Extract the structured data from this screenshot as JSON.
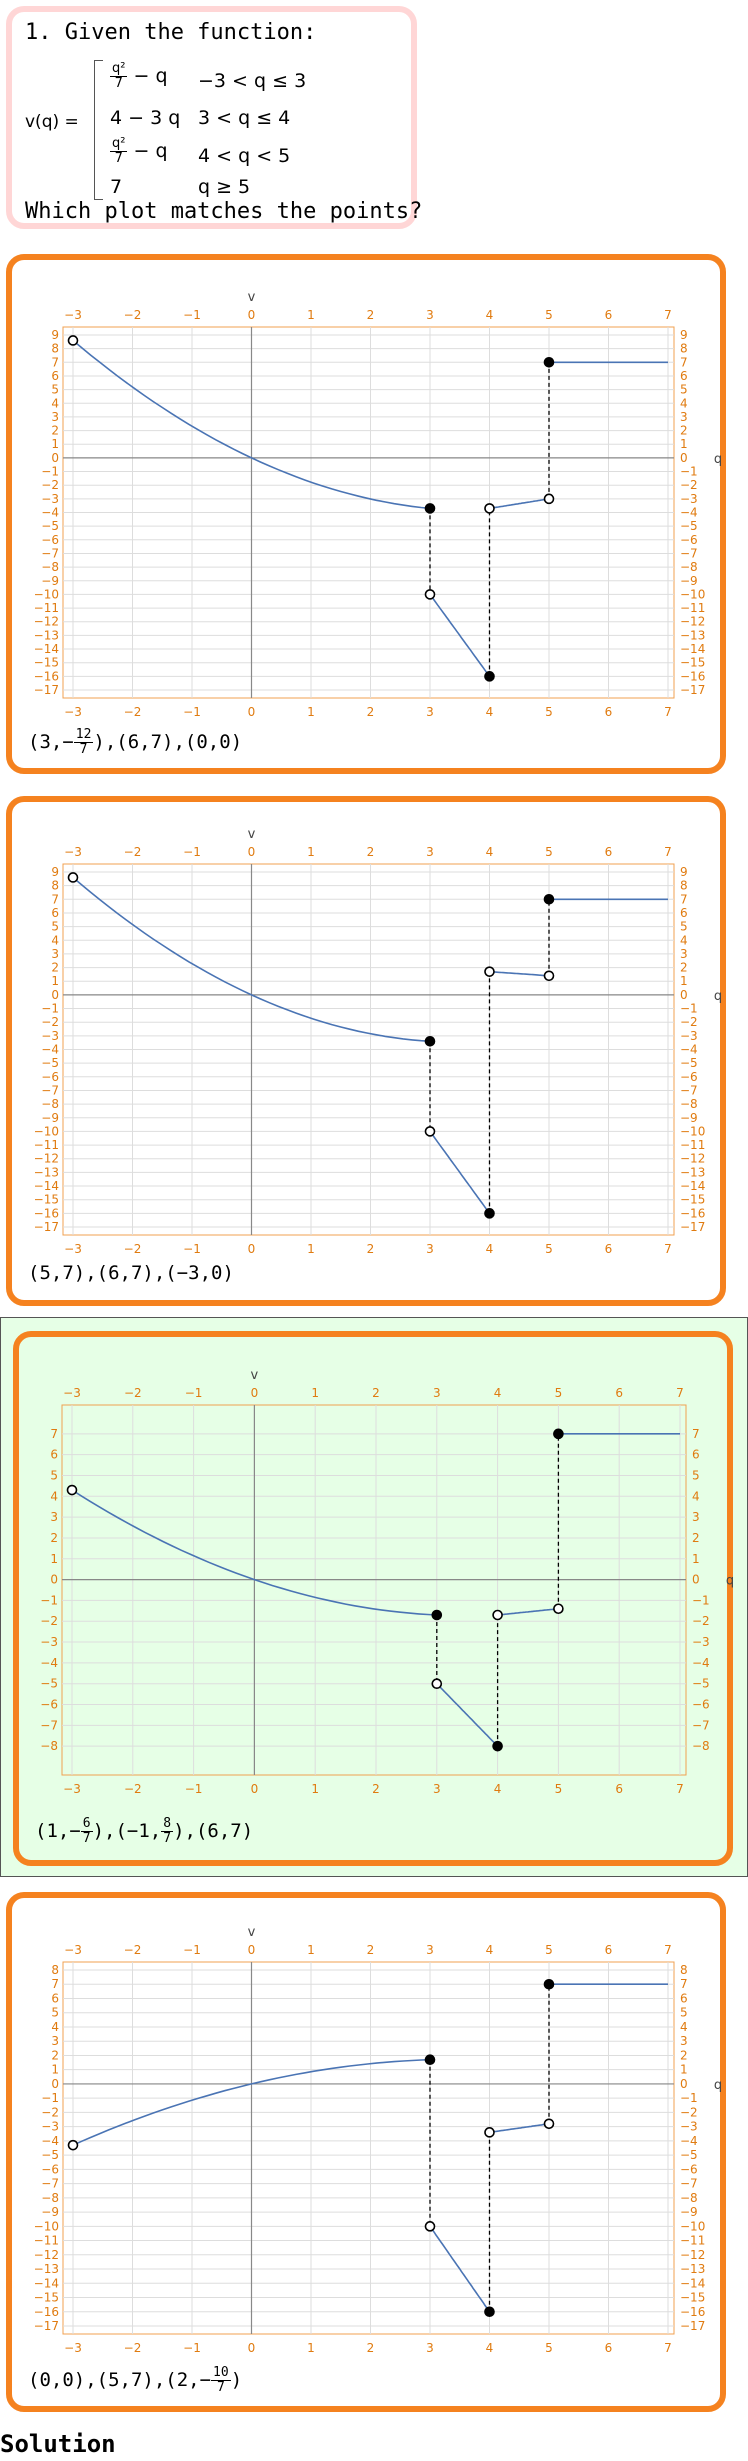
{
  "question": {
    "title": "1. Given the function:",
    "function_name": "v(q) =",
    "cases": [
      {
        "expr_frac_num": "q²",
        "expr_frac_den": "7",
        "expr_rest": " − q",
        "condition": "−3 < q ≤ 3"
      },
      {
        "expr_plain": "4 − 3 q",
        "condition": "3 < q ≤ 4"
      },
      {
        "expr_frac_num": "q²",
        "expr_frac_den": "7",
        "expr_rest": " − q",
        "condition": "4 < q < 5"
      },
      {
        "expr_plain": "7",
        "condition": "q ≥ 5"
      }
    ],
    "prompt": "Which plot matches the points?"
  },
  "colors": {
    "question_border": "#ffd6d6",
    "option_border": "#f5821f",
    "selected_bg": "#e6ffe6",
    "curve": "#4a74b4",
    "tick": "#e07b10"
  },
  "options": [
    {
      "points_label": [
        {
          "t": "(3,−"
        },
        {
          "num": "12",
          "den": "7"
        },
        {
          "t": "),(6,7),(0,0)"
        }
      ],
      "chart_data": {
        "type": "line",
        "xlabel": "q",
        "ylabel": "v",
        "xlim": [
          -3,
          7
        ],
        "ylim": [
          -17,
          9
        ],
        "xticks": [
          -3,
          -2,
          -1,
          0,
          1,
          2,
          3,
          4,
          5,
          6,
          7
        ],
        "yticks": [
          9,
          8,
          7,
          6,
          5,
          4,
          3,
          2,
          1,
          0,
          -1,
          -2,
          -3,
          -4,
          -5,
          -6,
          -7,
          -8,
          -9,
          -10,
          -11,
          -12,
          -13,
          -14,
          -15,
          -16,
          -17
        ],
        "segments": [
          {
            "fn": "q^2/7-q",
            "from": -3,
            "to": 3
          },
          {
            "fn": "4-3q",
            "from": 3,
            "to": 4
          },
          {
            "fn": "q^2/7-q",
            "from": 4,
            "to": 5
          },
          {
            "fn": "7",
            "from": 5,
            "to": 7
          }
        ],
        "dashes": [
          [
            3,
            -3.7,
            3,
            -10
          ],
          [
            4,
            -16,
            4,
            -3.7
          ],
          [
            5,
            -3,
            5,
            7
          ]
        ],
        "points": [
          {
            "x": -3,
            "y": 8.6,
            "filled": false
          },
          {
            "x": 3,
            "y": -3.7,
            "filled": true
          },
          {
            "x": 3,
            "y": -10,
            "filled": false
          },
          {
            "x": 4,
            "y": -16,
            "filled": true
          },
          {
            "x": 4,
            "y": -3.7,
            "filled": false
          },
          {
            "x": 5,
            "y": -3,
            "filled": false
          },
          {
            "x": 5,
            "y": 7,
            "filled": true
          }
        ]
      }
    },
    {
      "points_label": [
        {
          "t": "(5,7),(6,7),(−3,0)"
        }
      ],
      "chart_data": {
        "type": "line",
        "xlabel": "q",
        "ylabel": "v",
        "xlim": [
          -3,
          7
        ],
        "ylim": [
          -17,
          9
        ],
        "xticks": [
          -3,
          -2,
          -1,
          0,
          1,
          2,
          3,
          4,
          5,
          6,
          7
        ],
        "yticks": [
          9,
          8,
          7,
          6,
          5,
          4,
          3,
          2,
          1,
          0,
          -1,
          -2,
          -3,
          -4,
          -5,
          -6,
          -7,
          -8,
          -9,
          -10,
          -11,
          -12,
          -13,
          -14,
          -15,
          -16,
          -17
        ],
        "segments": [
          {
            "fn": "q^2/7-q",
            "from": -3,
            "to": 3
          },
          {
            "fn": "4-3q",
            "from": 3,
            "to": 4
          },
          {
            "fn": "q-q^2/7+2",
            "from": 4,
            "to": 5
          },
          {
            "fn": "7",
            "from": 5,
            "to": 7
          }
        ],
        "dashes": [
          [
            3,
            -3.4,
            3,
            -10
          ],
          [
            4,
            -16,
            4,
            1.7
          ],
          [
            5,
            1.4,
            5,
            7
          ]
        ],
        "points": [
          {
            "x": -3,
            "y": 8.6,
            "filled": false
          },
          {
            "x": 3,
            "y": -3.4,
            "filled": true
          },
          {
            "x": 3,
            "y": -10,
            "filled": false
          },
          {
            "x": 4,
            "y": -16,
            "filled": true
          },
          {
            "x": 4,
            "y": 1.7,
            "filled": false
          },
          {
            "x": 5,
            "y": 1.4,
            "filled": false
          },
          {
            "x": 5,
            "y": 7,
            "filled": true
          }
        ]
      }
    },
    {
      "selected": true,
      "points_label": [
        {
          "t": "(1,−"
        },
        {
          "num": "6",
          "den": "7"
        },
        {
          "t": "),(−1,"
        },
        {
          "num": "8",
          "den": "7"
        },
        {
          "t": "),(6,7)"
        }
      ],
      "chart_data": {
        "type": "line",
        "xlabel": "q",
        "ylabel": "v",
        "xlim": [
          -3,
          7
        ],
        "ylim": [
          -9,
          8
        ],
        "xticks": [
          -3,
          -2,
          -1,
          0,
          1,
          2,
          3,
          4,
          5,
          6,
          7
        ],
        "yticks": [
          7,
          6,
          5,
          4,
          3,
          2,
          1,
          0,
          -1,
          -2,
          -3,
          -4,
          -5,
          -6,
          -7,
          -8
        ],
        "segments": [
          {
            "fn": "q^2/14-q/2",
            "from": -3,
            "to": 3
          },
          {
            "fn": "4-3q",
            "from": 3,
            "to": 4,
            "scale": 0.5
          },
          {
            "fn": "q^2/14-q/2",
            "from": 4,
            "to": 5
          },
          {
            "fn": "7",
            "from": 5,
            "to": 7
          }
        ],
        "dashes": [
          [
            3,
            -1.7,
            3,
            -5
          ],
          [
            4,
            -8,
            4,
            -1.7
          ],
          [
            5,
            -1.4,
            5,
            7
          ]
        ],
        "points": [
          {
            "x": -3,
            "y": 4.3,
            "filled": false
          },
          {
            "x": 3,
            "y": -1.7,
            "filled": true
          },
          {
            "x": 3,
            "y": -5,
            "filled": false
          },
          {
            "x": 4,
            "y": -8,
            "filled": true
          },
          {
            "x": 4,
            "y": -1.7,
            "filled": false
          },
          {
            "x": 5,
            "y": -1.4,
            "filled": false
          },
          {
            "x": 5,
            "y": 7,
            "filled": true
          }
        ]
      }
    },
    {
      "points_label": [
        {
          "t": "(0,0),(5,7),(2,−"
        },
        {
          "num": "10",
          "den": "7"
        },
        {
          "t": ")"
        }
      ],
      "chart_data": {
        "type": "line",
        "xlabel": "q",
        "ylabel": "v",
        "xlim": [
          -3,
          7
        ],
        "ylim": [
          -17,
          8
        ],
        "xticks": [
          -3,
          -2,
          -1,
          0,
          1,
          2,
          3,
          4,
          5,
          6,
          7
        ],
        "yticks": [
          8,
          7,
          6,
          5,
          4,
          3,
          2,
          1,
          0,
          -1,
          -2,
          -3,
          -4,
          -5,
          -6,
          -7,
          -8,
          -9,
          -10,
          -11,
          -12,
          -13,
          -14,
          -15,
          -16,
          -17
        ],
        "segments": [
          {
            "fn": "q-q^2/7*0.4",
            "from": -3,
            "to": 3,
            "custom": "opt4"
          },
          {
            "fn": "4-3q",
            "from": 3,
            "to": 4
          },
          {
            "fn": "q^2/7-q",
            "from": 4,
            "to": 5
          },
          {
            "fn": "7",
            "from": 5,
            "to": 7
          }
        ],
        "dashes": [
          [
            3,
            1.7,
            3,
            -10
          ],
          [
            4,
            -16,
            4,
            -3.4
          ],
          [
            5,
            -2.8,
            5,
            7
          ]
        ],
        "points": [
          {
            "x": -3,
            "y": -4.3,
            "filled": false
          },
          {
            "x": 3,
            "y": 1.7,
            "filled": true
          },
          {
            "x": 3,
            "y": -10,
            "filled": false
          },
          {
            "x": 4,
            "y": -16,
            "filled": true
          },
          {
            "x": 4,
            "y": -3.4,
            "filled": false
          },
          {
            "x": 5,
            "y": -2.8,
            "filled": false
          },
          {
            "x": 5,
            "y": 7,
            "filled": true
          }
        ]
      }
    }
  ],
  "solution_label": "Solution"
}
